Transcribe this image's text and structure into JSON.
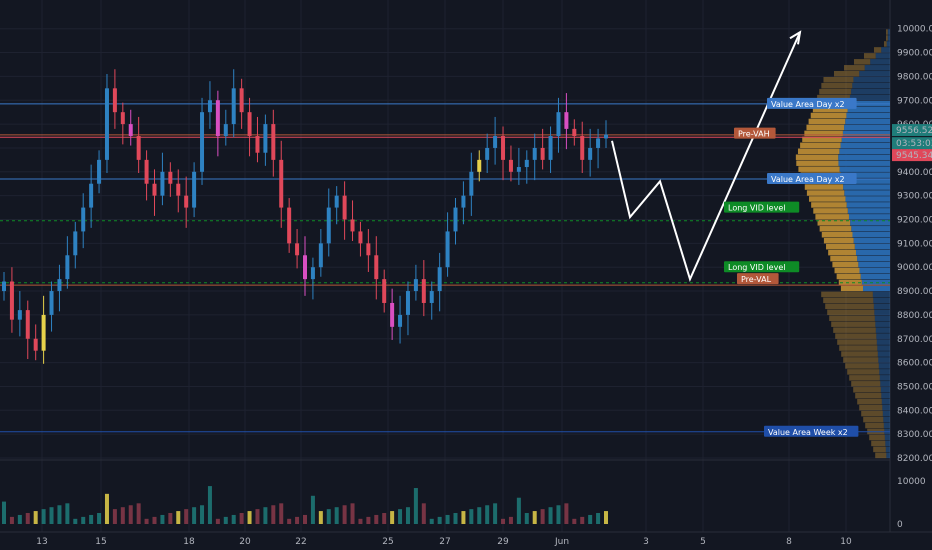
{
  "colors": {
    "background": "#131722",
    "grid": "#1e2230",
    "up": "#2e82c2",
    "down": "#e0485a",
    "up_alt": "#e7d24b",
    "down_alt": "#d94fc2",
    "poc": "#f0e040",
    "value_area_day": "#3a78c8",
    "pre_va": "#b3583a",
    "long_vid": "#0e8b26",
    "week": "#1f4ea8",
    "profile_up": "#2a6db3",
    "profile_down": "#b88a35",
    "arrow": "#ffffff",
    "axis_text": "#b2b5be"
  },
  "chart_data": {
    "type": "candlestick",
    "y_axis": {
      "ylim": [
        8160,
        10100
      ],
      "ticks": [
        "10000.00",
        "9900.00",
        "9800.00",
        "9700.00",
        "9600.00",
        "9500.00",
        "9400.00",
        "9300.00",
        "9200.00",
        "9100.00",
        "9000.00",
        "8900.00",
        "8800.00",
        "8700.00",
        "8600.00",
        "8500.00",
        "8400.00",
        "8300.00",
        "8200.00"
      ]
    },
    "x_axis": {
      "ticks": [
        "13",
        "15",
        "18",
        "20",
        "22",
        "25",
        "27",
        "29",
        "Jun",
        "3",
        "5",
        "8",
        "10"
      ]
    },
    "volume_axis": {
      "ticks": [
        "10000",
        "0"
      ],
      "ylim": [
        0,
        13000
      ]
    },
    "price_labels": {
      "last": "9556.52",
      "countdown": "03:53:03",
      "other": "9545.34"
    },
    "levels": [
      {
        "name": "Value Area Day x2",
        "value": 9685,
        "kind": "value_area_day"
      },
      {
        "name": "Pre-VAH",
        "value": 9555,
        "kind": "pre_va"
      },
      {
        "name": "Value Area Day x2",
        "value": 9370,
        "kind": "value_area_day"
      },
      {
        "name": "Long VID level",
        "value": 9195,
        "kind": "long_vid"
      },
      {
        "name": "Long VID level",
        "value": 8935,
        "kind": "long_vid"
      },
      {
        "name": "Pre-VAL",
        "value": 8925,
        "kind": "pre_va"
      },
      {
        "name": "Value Area Week x2",
        "value": 8310,
        "kind": "week"
      }
    ],
    "labels": {
      "vad_top": "Value Area Day x2",
      "vah": "Pre-VAH",
      "vad_bottom": "Value Area Day x2",
      "vid_1": "Long VID level",
      "vid_2": "Long VID level",
      "val": "Pre-VAL",
      "week": "Value Area Week x2"
    },
    "projection_path": [
      [
        13.0,
        9530
      ],
      [
        13.5,
        9210
      ],
      [
        14.2,
        9360
      ],
      [
        15.6,
        8950
      ],
      [
        19.8,
        9980
      ]
    ],
    "closes": [
      8940,
      8780,
      8820,
      8700,
      8650,
      8800,
      8900,
      8950,
      9050,
      9150,
      9250,
      9350,
      9450,
      9750,
      9650,
      9600,
      9550,
      9450,
      9350,
      9300,
      9400,
      9350,
      9300,
      9250,
      9400,
      9650,
      9700,
      9550,
      9600,
      9750,
      9650,
      9550,
      9480,
      9600,
      9450,
      9250,
      9100,
      9050,
      8950,
      9000,
      9100,
      9250,
      9300,
      9200,
      9150,
      9100,
      9050,
      8950,
      8850,
      8750,
      8800,
      8900,
      8950,
      8850,
      8900,
      9000,
      9150,
      9250,
      9300,
      9400,
      9450,
      9500,
      9550,
      9450,
      9400,
      9420,
      9450,
      9500,
      9450,
      9550,
      9650,
      9580,
      9550,
      9450,
      9500,
      9540,
      9556
    ]
  }
}
